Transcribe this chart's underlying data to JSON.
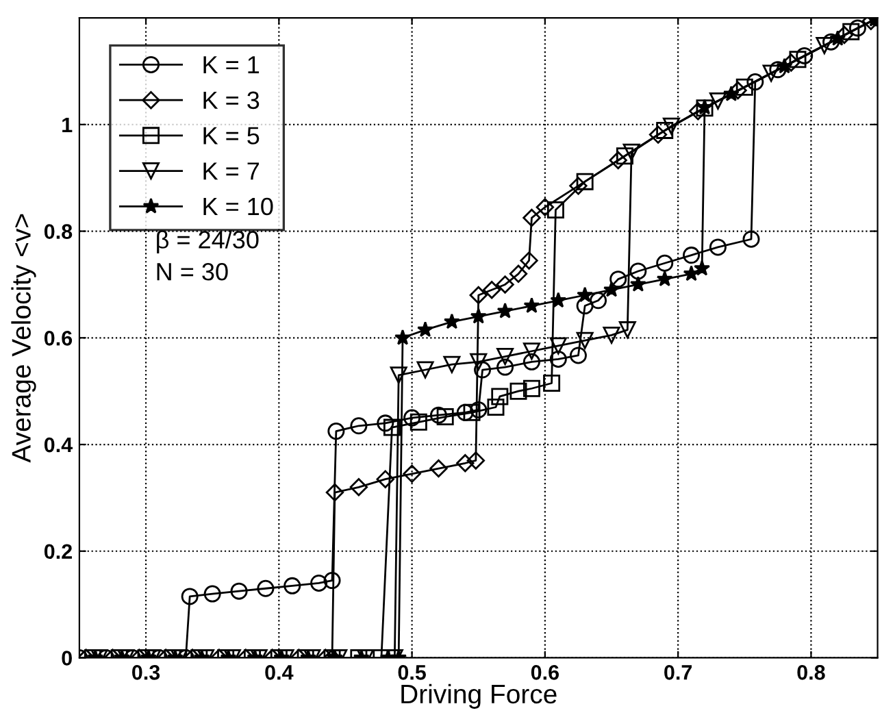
{
  "chart_data": {
    "type": "line",
    "xlabel": "Driving Force",
    "ylabel": "Average Velocity <v>",
    "xlim": [
      0.25,
      0.85
    ],
    "ylim": [
      0,
      1.2
    ],
    "xticks": [
      0.3,
      0.4,
      0.5,
      0.6,
      0.7,
      0.8
    ],
    "yticks": [
      0,
      0.2,
      0.4,
      0.6,
      0.8,
      1
    ],
    "grid": true,
    "legend": "top left",
    "line_style": "solid",
    "annotations": [
      "β = 24/30",
      "N = 30"
    ],
    "series": [
      {
        "name": "K = 1",
        "color": "#000000",
        "marker": "circle",
        "x": [
          0.25,
          0.27,
          0.29,
          0.31,
          0.33,
          0.333,
          0.35,
          0.37,
          0.39,
          0.41,
          0.43,
          0.44,
          0.443,
          0.46,
          0.48,
          0.5,
          0.52,
          0.54,
          0.55,
          0.553,
          0.57,
          0.59,
          0.61,
          0.625,
          0.63,
          0.64,
          0.655,
          0.67,
          0.69,
          0.71,
          0.73,
          0.755,
          0.758,
          0.775,
          0.795,
          0.815,
          0.835,
          0.85
        ],
        "values": [
          0,
          0,
          0,
          0,
          0,
          0.115,
          0.12,
          0.125,
          0.13,
          0.135,
          0.14,
          0.145,
          0.425,
          0.435,
          0.44,
          0.45,
          0.455,
          0.46,
          0.465,
          0.54,
          0.545,
          0.555,
          0.56,
          0.567,
          0.66,
          0.67,
          0.71,
          0.725,
          0.74,
          0.755,
          0.77,
          0.785,
          1.08,
          1.103,
          1.129,
          1.155,
          1.181,
          1.2
        ]
      },
      {
        "name": "K = 3",
        "color": "#000000",
        "marker": "diamond",
        "x": [
          0.255,
          0.275,
          0.295,
          0.315,
          0.335,
          0.355,
          0.375,
          0.395,
          0.415,
          0.435,
          0.44,
          0.442,
          0.46,
          0.48,
          0.5,
          0.52,
          0.54,
          0.548,
          0.55,
          0.56,
          0.57,
          0.58,
          0.588,
          0.59,
          0.6,
          0.625,
          0.655,
          0.685,
          0.715,
          0.745,
          0.785,
          0.825,
          0.845
        ],
        "values": [
          0,
          0,
          0,
          0,
          0,
          0,
          0,
          0,
          0,
          0,
          0,
          0.31,
          0.32,
          0.335,
          0.345,
          0.355,
          0.365,
          0.37,
          0.68,
          0.69,
          0.7,
          0.72,
          0.745,
          0.825,
          0.845,
          0.885,
          0.933,
          0.981,
          1.025,
          1.064,
          1.116,
          1.168,
          1.194
        ]
      },
      {
        "name": "K = 5",
        "color": "#000000",
        "marker": "square",
        "x": [
          0.26,
          0.28,
          0.3,
          0.32,
          0.34,
          0.36,
          0.38,
          0.4,
          0.42,
          0.44,
          0.46,
          0.477,
          0.485,
          0.505,
          0.525,
          0.545,
          0.563,
          0.566,
          0.58,
          0.59,
          0.605,
          0.608,
          0.63,
          0.66,
          0.69,
          0.72,
          0.75,
          0.79,
          0.83
        ],
        "values": [
          0,
          0,
          0,
          0,
          0,
          0,
          0,
          0,
          0,
          0,
          0,
          0,
          0.432,
          0.442,
          0.452,
          0.46,
          0.47,
          0.49,
          0.5,
          0.505,
          0.515,
          0.84,
          0.893,
          0.941,
          0.989,
          1.031,
          1.07,
          1.122,
          1.174
        ]
      },
      {
        "name": "K = 7",
        "color": "#000000",
        "marker": "triangle",
        "x": [
          0.265,
          0.285,
          0.305,
          0.325,
          0.345,
          0.365,
          0.385,
          0.405,
          0.425,
          0.445,
          0.465,
          0.487,
          0.49,
          0.51,
          0.53,
          0.55,
          0.57,
          0.59,
          0.61,
          0.63,
          0.65,
          0.662,
          0.665,
          0.695,
          0.73,
          0.77,
          0.81
        ],
        "values": [
          0,
          0,
          0,
          0,
          0,
          0,
          0,
          0,
          0,
          0,
          0,
          0,
          0.53,
          0.54,
          0.55,
          0.555,
          0.565,
          0.575,
          0.585,
          0.595,
          0.605,
          0.615,
          0.948,
          0.997,
          1.044,
          1.096,
          1.148
        ]
      },
      {
        "name": "K = 10",
        "color": "#000000",
        "marker": "star",
        "x": [
          0.262,
          0.282,
          0.302,
          0.322,
          0.342,
          0.362,
          0.382,
          0.402,
          0.422,
          0.442,
          0.462,
          0.482,
          0.49,
          0.493,
          0.51,
          0.53,
          0.55,
          0.57,
          0.59,
          0.61,
          0.63,
          0.65,
          0.67,
          0.69,
          0.71,
          0.718,
          0.72,
          0.74,
          0.78,
          0.82,
          0.848
        ],
        "values": [
          0,
          0,
          0,
          0,
          0,
          0,
          0,
          0,
          0,
          0,
          0,
          0,
          0,
          0.6,
          0.615,
          0.63,
          0.64,
          0.65,
          0.66,
          0.67,
          0.68,
          0.69,
          0.7,
          0.71,
          0.72,
          0.73,
          1.032,
          1.057,
          1.109,
          1.161,
          1.197
        ]
      }
    ]
  }
}
